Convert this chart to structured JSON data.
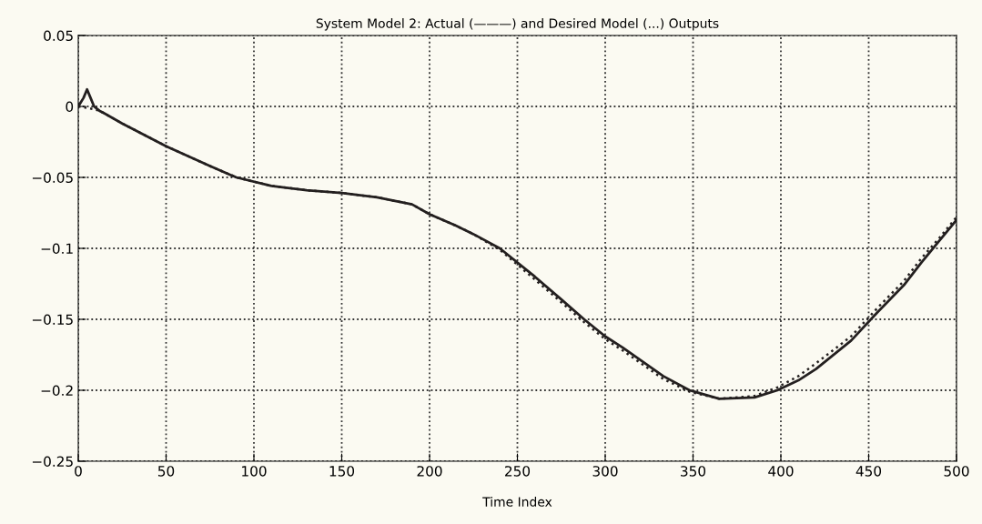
{
  "chart_data": {
    "type": "line",
    "title": "System Model 2: Actual (———) and Desired Model (...) Outputs",
    "xlabel": "Time Index",
    "series": [
      {
        "color": "#231f1f",
        "line_style": "solid",
        "x": [
          0,
          3,
          5,
          7,
          9,
          12,
          15,
          25,
          50,
          75,
          90,
          110,
          130,
          150,
          170,
          190,
          200,
          215,
          225,
          240,
          260,
          275,
          288,
          300,
          310,
          333,
          348,
          365,
          385,
          398,
          410,
          420,
          440,
          455,
          470,
          480,
          490,
          500
        ],
        "values": [
          0,
          0.006,
          0.012,
          0.006,
          0,
          -0.003,
          -0.005,
          -0.012,
          -0.028,
          -0.042,
          -0.05,
          -0.056,
          -0.059,
          -0.061,
          -0.064,
          -0.069,
          -0.076,
          -0.084,
          -0.09,
          -0.1,
          -0.12,
          -0.136,
          -0.15,
          -0.162,
          -0.17,
          -0.19,
          -0.2,
          -0.206,
          -0.205,
          -0.2,
          -0.193,
          -0.185,
          -0.165,
          -0.145,
          -0.126,
          -0.11,
          -0.095,
          -0.08
        ]
      },
      {
        "color": "#231f1f",
        "line_style": "dotted",
        "x": [
          0,
          5,
          9,
          12,
          15,
          25,
          50,
          75,
          90,
          110,
          130,
          150,
          170,
          190,
          200,
          215,
          225,
          240,
          260,
          275,
          288,
          300,
          310,
          333,
          348,
          365,
          385,
          398,
          410,
          420,
          440,
          455,
          470,
          480,
          490,
          500
        ],
        "values": [
          0,
          -0.001,
          -0.002,
          -0.003,
          -0.005,
          -0.012,
          -0.028,
          -0.042,
          -0.05,
          -0.056,
          -0.059,
          -0.061,
          -0.064,
          -0.069,
          -0.076,
          -0.084,
          -0.09,
          -0.101,
          -0.122,
          -0.138,
          -0.152,
          -0.164,
          -0.172,
          -0.192,
          -0.201,
          -0.206,
          -0.204,
          -0.198,
          -0.19,
          -0.181,
          -0.162,
          -0.142,
          -0.123,
          -0.107,
          -0.093,
          -0.078
        ]
      }
    ],
    "xlim": [
      0,
      500
    ],
    "xticks": [
      0,
      50,
      100,
      150,
      200,
      250,
      300,
      350,
      400,
      450,
      500
    ],
    "ylim": [
      -0.25,
      0.05
    ],
    "yticks": [
      0.05,
      0,
      -0.05,
      -0.1,
      -0.15,
      -0.2,
      -0.25
    ],
    "grid": true
  }
}
